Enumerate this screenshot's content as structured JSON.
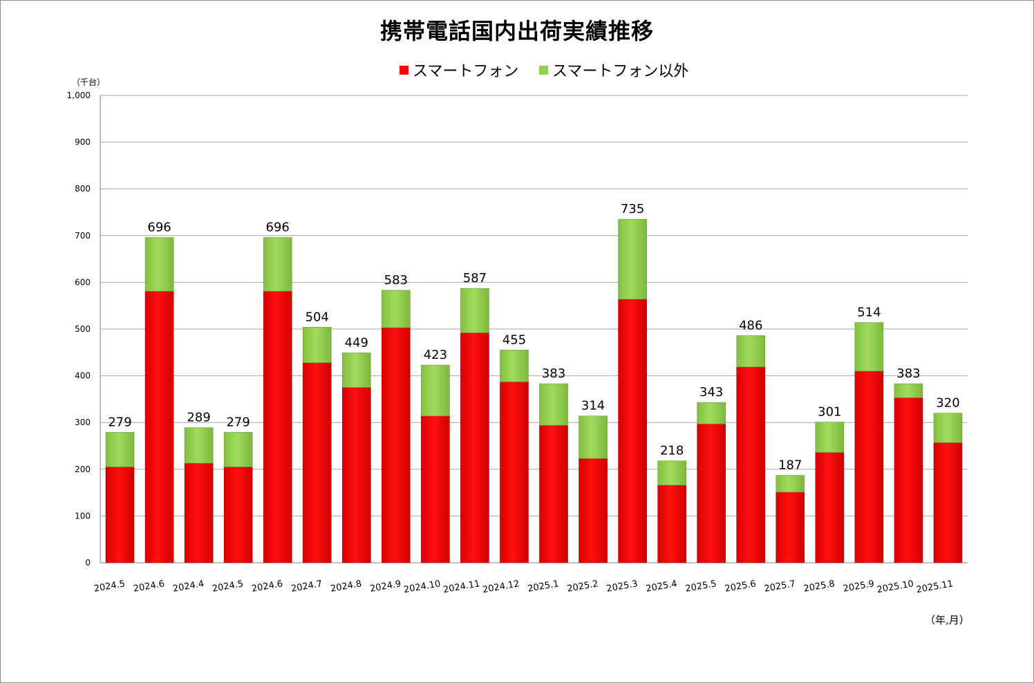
{
  "chart_data": {
    "type": "bar",
    "stacked": true,
    "title": "携帯電話国内出荷実績推移",
    "y_unit_label": "（千台）",
    "x_unit_label": "（年,月）",
    "ylim": [
      0,
      1000
    ],
    "yticks": [
      0,
      100,
      200,
      300,
      400,
      500,
      600,
      700,
      800,
      900,
      1000
    ],
    "ytick_labels": [
      "0",
      "100",
      "200",
      "300",
      "400",
      "500",
      "600",
      "700",
      "800",
      "900",
      "1,000"
    ],
    "grid": true,
    "legend_position": "top-center",
    "categories": [
      "2024.5",
      "2024.6",
      "2024.4",
      "2024.5",
      "2024.6",
      "2024.7",
      "2024.8",
      "2024.9",
      "2024.10",
      "2024.11",
      "2024.12",
      "2025.1",
      "2025.2",
      "2025.3",
      "2025.4",
      "2025.5",
      "2025.6",
      "2025.7",
      "2025.8",
      "2025.9",
      "2025.10",
      "2025.11"
    ],
    "series": [
      {
        "name": "スマートフォン",
        "color": "#ff0000",
        "values": [
          205,
          581,
          213,
          205,
          581,
          428,
          375,
          503,
          314,
          492,
          387,
          294,
          223,
          564,
          166,
          297,
          419,
          151,
          236,
          410,
          353,
          257
        ]
      },
      {
        "name": "スマートフォン以外",
        "color": "#92d050",
        "values": [
          74,
          115,
          76,
          74,
          115,
          76,
          74,
          80,
          109,
          95,
          68,
          89,
          91,
          171,
          52,
          46,
          67,
          36,
          65,
          104,
          30,
          63
        ]
      }
    ],
    "totals": [
      279,
      696,
      289,
      279,
      696,
      504,
      449,
      583,
      423,
      587,
      455,
      383,
      314,
      735,
      218,
      343,
      486,
      187,
      301,
      514,
      383,
      320
    ]
  }
}
